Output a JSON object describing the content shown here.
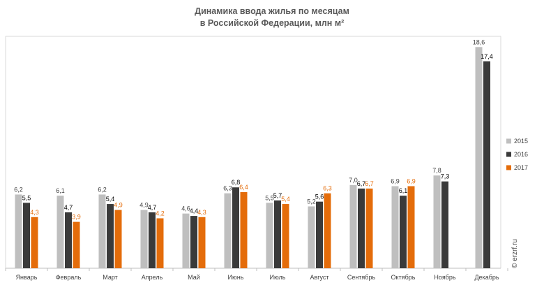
{
  "chart_data": {
    "type": "bar",
    "title": [
      "Динамика ввода жилья по месяцам",
      "в Российской Федерации, млн м²"
    ],
    "categories": [
      "Январь",
      "Февраль",
      "Март",
      "Апрель",
      "Май",
      "Июнь",
      "Июль",
      "Август",
      "Сентябрь",
      "Октябрь",
      "Ноябрь",
      "Декабрь"
    ],
    "series": [
      {
        "name": "2015",
        "color": "#bfbfbf",
        "label_color": "#404040",
        "values": [
          6.2,
          6.1,
          6.2,
          4.9,
          4.6,
          6.3,
          5.5,
          5.2,
          7.0,
          6.9,
          7.8,
          18.6
        ],
        "labels": [
          "6,2",
          "6,1",
          "6,2",
          "4,9",
          "4,6",
          "6,3",
          "5,5",
          "5,2",
          "7,0",
          "6,9",
          "7,8",
          "18,6"
        ]
      },
      {
        "name": "2016",
        "color": "#3a3a3a",
        "label_color": "#000000",
        "values": [
          5.5,
          4.7,
          5.4,
          4.7,
          4.4,
          6.8,
          5.7,
          5.6,
          6.7,
          6.1,
          7.3,
          17.4
        ],
        "labels": [
          "5,5",
          "4,7",
          "5,4",
          "4,7",
          "4,4",
          "6,8",
          "5,7",
          "5,6",
          "6,7",
          "6,1",
          "7,3",
          "17,4"
        ]
      },
      {
        "name": "2017",
        "color": "#e46c0a",
        "label_color": "#e46c0a",
        "values": [
          4.3,
          3.9,
          4.9,
          4.2,
          4.3,
          6.4,
          5.4,
          6.3,
          6.7,
          6.9,
          null,
          null
        ],
        "labels": [
          "4,3",
          "3,9",
          "4,9",
          "4,2",
          "4,3",
          "6,4",
          "5,4",
          "6,3",
          "6,7",
          "6,9",
          null,
          null
        ]
      }
    ],
    "ylim": [
      0,
      19.5
    ],
    "grid": false,
    "legend_position": "right"
  },
  "watermark": "© erzrf.ru"
}
